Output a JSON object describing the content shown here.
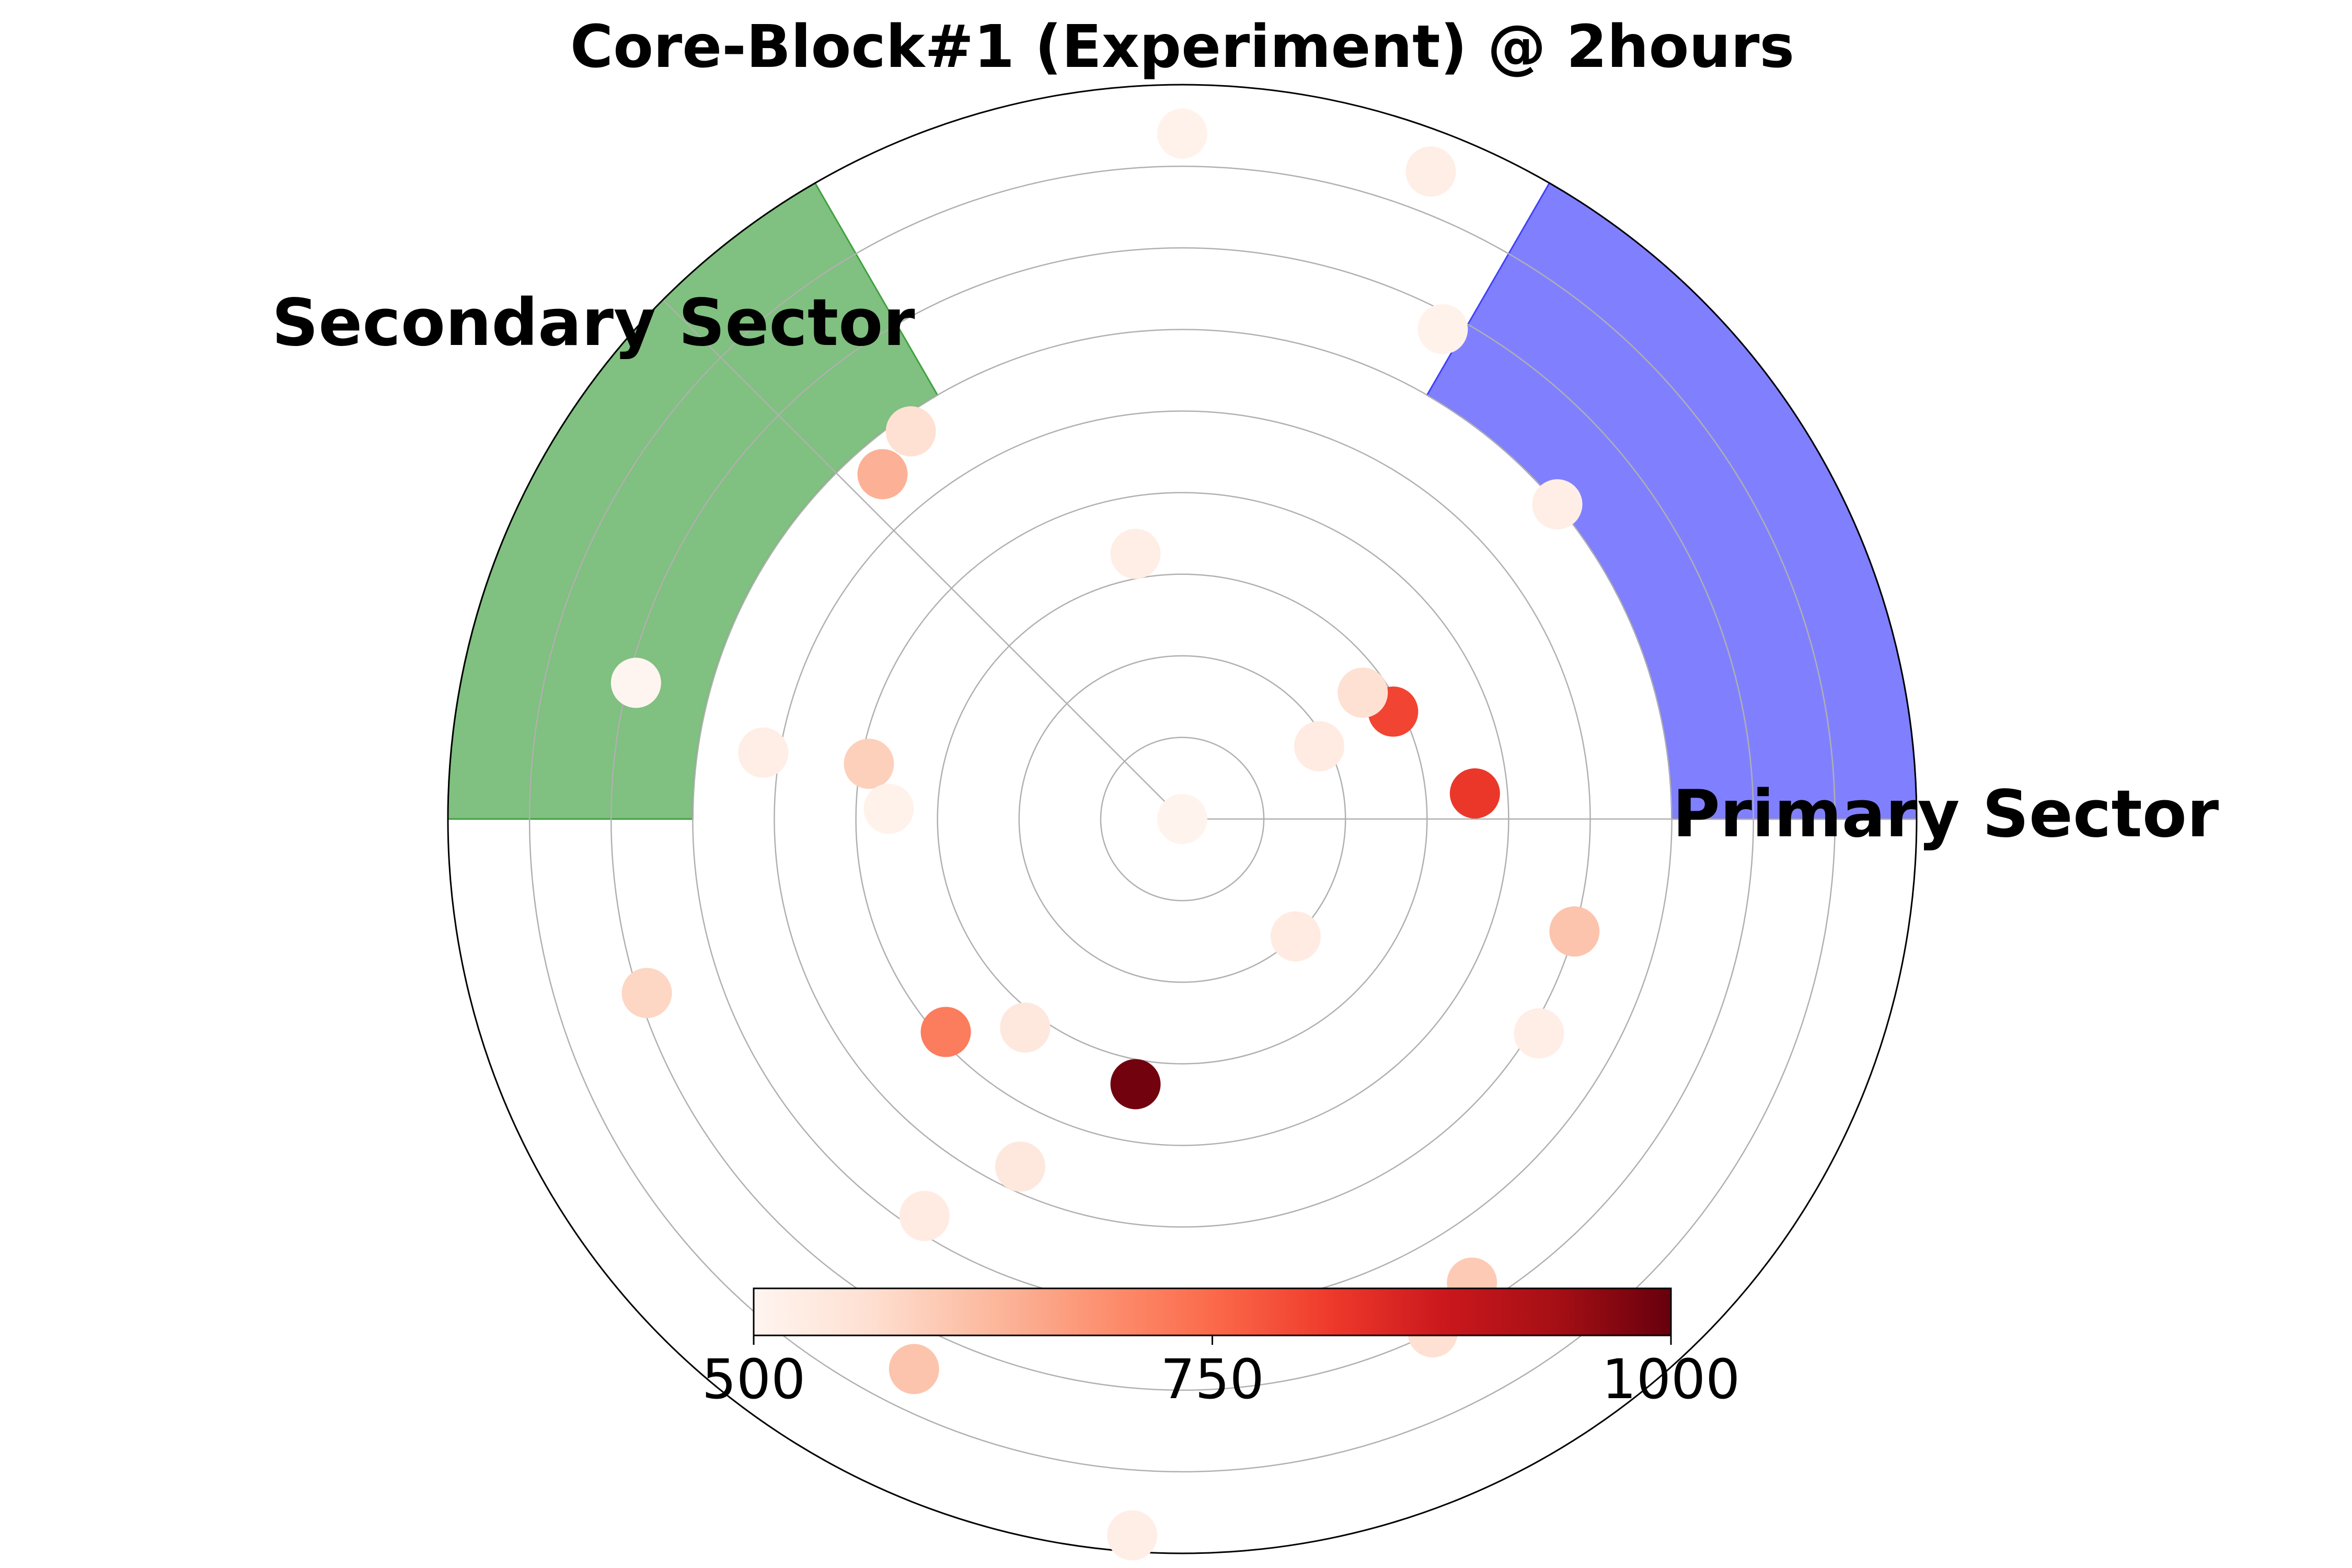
{
  "chart_data": {
    "type": "scatter",
    "title": "Core-Block#1 (Experiment) @ 2hours",
    "polar": true,
    "grid": true,
    "r_max": 9,
    "r_gridlines": [
      1,
      2,
      3,
      4,
      5,
      6,
      7,
      8
    ],
    "angle_gridlines_deg": [
      0,
      135
    ],
    "sectors": [
      {
        "label": "Primary Sector",
        "theta_start_deg": 0,
        "theta_end_deg": 60,
        "r_inner": 6,
        "r_outer": 9,
        "color": "#8080ff",
        "edge_color": "#4040ff"
      },
      {
        "label": "Secondary Sector",
        "theta_start_deg": 120,
        "theta_end_deg": 180,
        "r_inner": 6,
        "r_outer": 9,
        "color": "#80c080",
        "edge_color": "#40a040"
      }
    ],
    "points": [
      {
        "theta_deg": 0,
        "r": 0,
        "value": 505
      },
      {
        "theta_deg": 90,
        "r": 8.4,
        "value": 510
      },
      {
        "theta_deg": 69,
        "r": 8.5,
        "value": 520
      },
      {
        "theta_deg": 62,
        "r": 6.8,
        "value": 510
      },
      {
        "theta_deg": 40,
        "r": 6.0,
        "value": 520
      },
      {
        "theta_deg": 27,
        "r": 2.9,
        "value": 800
      },
      {
        "theta_deg": 35,
        "r": 2.7,
        "value": 560
      },
      {
        "theta_deg": 28,
        "r": 1.9,
        "value": 530
      },
      {
        "theta_deg": 5,
        "r": 3.6,
        "value": 820
      },
      {
        "theta_deg": 100,
        "r": 3.3,
        "value": 520
      },
      {
        "theta_deg": 125,
        "r": 5.8,
        "value": 560
      },
      {
        "theta_deg": 131,
        "r": 5.6,
        "value": 640
      },
      {
        "theta_deg": 166,
        "r": 6.9,
        "value": 500
      },
      {
        "theta_deg": 171,
        "r": 5.2,
        "value": 520
      },
      {
        "theta_deg": 170,
        "r": 3.9,
        "value": 590
      },
      {
        "theta_deg": 178,
        "r": 3.6,
        "value": 510
      },
      {
        "theta_deg": 198,
        "r": 6.9,
        "value": 580
      },
      {
        "theta_deg": 222,
        "r": 3.9,
        "value": 720
      },
      {
        "theta_deg": 233,
        "r": 3.2,
        "value": 540
      },
      {
        "theta_deg": 260,
        "r": 3.3,
        "value": 990
      },
      {
        "theta_deg": 245,
        "r": 4.7,
        "value": 540
      },
      {
        "theta_deg": 237,
        "r": 5.8,
        "value": 530
      },
      {
        "theta_deg": 314,
        "r": 2.0,
        "value": 530
      },
      {
        "theta_deg": 344,
        "r": 5.0,
        "value": 610
      },
      {
        "theta_deg": 329,
        "r": 5.1,
        "value": 520
      },
      {
        "theta_deg": 302,
        "r": 6.7,
        "value": 600
      },
      {
        "theta_deg": 296,
        "r": 7.0,
        "value": 560
      },
      {
        "theta_deg": 244,
        "r": 7.5,
        "value": 610
      },
      {
        "theta_deg": 266,
        "r": 8.8,
        "value": 520
      }
    ],
    "colorbar": {
      "min": 500,
      "max": 1000,
      "ticks": [
        500,
        750,
        1000
      ],
      "tick_labels": [
        "500",
        "750",
        "1000"
      ],
      "colormap": "Reds",
      "orientation": "horizontal",
      "placement": "bottom-center"
    }
  }
}
